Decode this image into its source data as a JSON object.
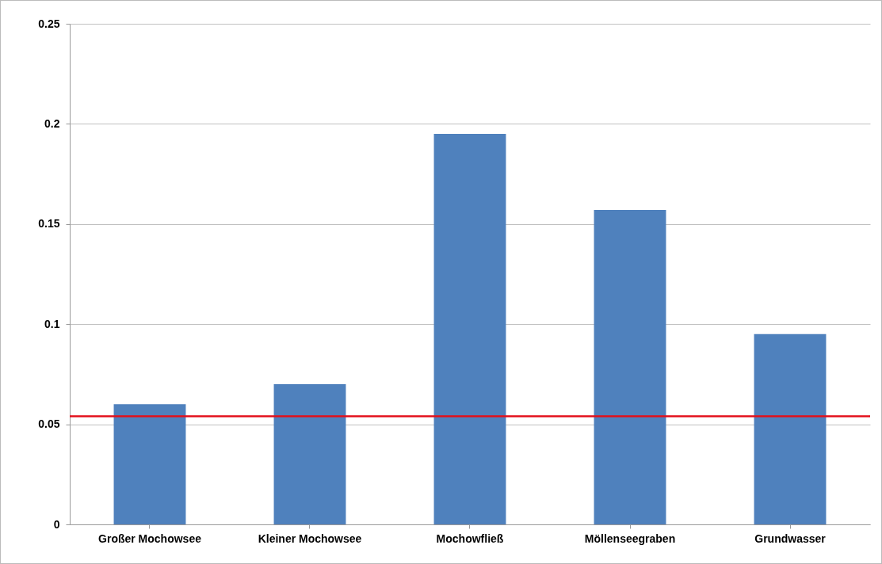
{
  "chart_data": {
    "type": "bar",
    "categories": [
      "Großer Mochowsee",
      "Kleiner Mochowsee",
      "Mochowfließ",
      "Möllenseegraben",
      "Grundwasser"
    ],
    "values": [
      0.06,
      0.07,
      0.195,
      0.157,
      0.095
    ],
    "color": "#4f81bd",
    "ylim": [
      0,
      0.25
    ],
    "yticks": [
      0,
      0.05,
      0.1,
      0.15,
      0.2,
      0.25
    ],
    "grid": "y",
    "ref_lines": [
      {
        "axis": "y",
        "value": 0.054,
        "color": "#e3101b"
      }
    ]
  }
}
